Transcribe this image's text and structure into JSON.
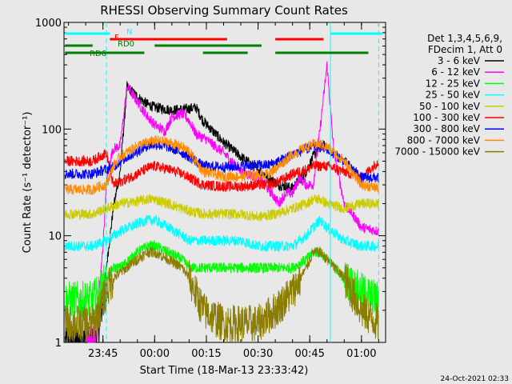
{
  "chart_data": {
    "type": "line",
    "title": "RHESSI Observing Summary Count Rates",
    "xlabel": "Start Time (18-Mar-13 23:33:42)",
    "ylabel": "Count Rate (s⁻¹ detector⁻¹)",
    "y_scale": "log",
    "ylim": [
      1,
      1000
    ],
    "y_ticks": [
      {
        "value": 1,
        "label": "1"
      },
      {
        "value": 10,
        "label": "10"
      },
      {
        "value": 100,
        "label": "100"
      },
      {
        "value": 1000,
        "label": "1000"
      }
    ],
    "x_ticks": [
      {
        "value": "23:45",
        "label": "23:45"
      },
      {
        "value": "00:00",
        "label": "00:00"
      },
      {
        "value": "00:15",
        "label": "00:15"
      },
      {
        "value": "00:30",
        "label": "00:30"
      },
      {
        "value": "00:45",
        "label": "00:45"
      },
      {
        "value": "01:00",
        "label": "01:00"
      }
    ],
    "x_range": [
      "23:33:42",
      "01:07:00"
    ],
    "legend_header": [
      "Det 1,3,4,5,6,9,",
      "FDecim 1, Att 0"
    ],
    "legend_placement": "right",
    "series": [
      {
        "name": "3 - 6 keV",
        "color": "#000000",
        "x": [
          "23:34",
          "23:43",
          "23:45",
          "23:46",
          "23:48",
          "23:50",
          "23:52",
          "23:55",
          "23:58",
          "00:00",
          "00:05",
          "00:10",
          "00:12",
          "00:14",
          "00:17",
          "00:20",
          "00:25",
          "00:30",
          "00:33",
          "00:36",
          "00:40",
          "00:44",
          "00:46",
          "00:48",
          "00:50"
        ],
        "values": [
          1,
          1,
          2.5,
          5,
          18,
          40,
          250,
          200,
          170,
          160,
          150,
          155,
          160,
          120,
          95,
          75,
          55,
          42,
          35,
          30,
          28,
          40,
          55,
          70,
          70
        ]
      },
      {
        "name": "6 - 12 keV",
        "color": "#ff00ff",
        "x": [
          "23:40",
          "23:43",
          "23:44",
          "23:45",
          "23:46",
          "23:47",
          "23:48",
          "23:50",
          "23:52",
          "23:55",
          "23:58",
          "00:00",
          "00:03",
          "00:05",
          "00:08",
          "00:10",
          "00:12",
          "00:15",
          "00:20",
          "00:25",
          "00:30",
          "00:34",
          "00:36",
          "00:38",
          "00:40",
          "00:42",
          "00:44",
          "00:46",
          "00:48",
          "00:50",
          "00:52",
          "00:55",
          "00:58",
          "01:00",
          "01:05"
        ],
        "values": [
          1,
          1,
          3,
          8,
          30,
          50,
          65,
          70,
          250,
          180,
          130,
          110,
          95,
          130,
          140,
          120,
          90,
          80,
          60,
          40,
          35,
          25,
          20,
          25,
          25,
          35,
          30,
          30,
          100,
          400,
          60,
          20,
          15,
          12,
          11
        ]
      },
      {
        "name": "12 - 25 keV",
        "color": "#00ff00",
        "x": [
          "23:34",
          "23:42",
          "23:44",
          "23:46",
          "23:48",
          "23:50",
          "23:55",
          "23:58",
          "00:00",
          "00:04",
          "00:08",
          "00:10",
          "00:14",
          "00:20",
          "00:25",
          "00:30",
          "00:35",
          "00:40",
          "00:44",
          "00:46",
          "00:48",
          "00:50",
          "00:55",
          "01:00",
          "01:05"
        ],
        "values": [
          2.5,
          2.5,
          3,
          4,
          5,
          5,
          7,
          8,
          8,
          7,
          6,
          5,
          5,
          5,
          5,
          5,
          5,
          5,
          6,
          7,
          7,
          6,
          4,
          3,
          2.5
        ]
      },
      {
        "name": "25 - 50 keV",
        "color": "#00ffff",
        "x": [
          "23:34",
          "23:42",
          "23:44",
          "23:46",
          "23:48",
          "23:50",
          "23:55",
          "23:58",
          "00:00",
          "00:04",
          "00:08",
          "00:10",
          "00:14",
          "00:20",
          "00:25",
          "00:30",
          "00:35",
          "00:40",
          "00:44",
          "00:46",
          "00:48",
          "00:50",
          "00:55",
          "01:00",
          "01:05"
        ],
        "values": [
          8,
          8,
          8.5,
          9,
          10,
          11,
          13,
          14,
          14,
          12,
          10,
          9,
          9,
          9,
          9,
          8,
          8,
          8,
          10,
          12,
          14,
          12,
          9,
          8,
          8
        ]
      },
      {
        "name": "50 - 100 keV",
        "color": "#cccc00",
        "x": [
          "23:34",
          "23:42",
          "23:44",
          "23:46",
          "23:48",
          "23:50",
          "23:55",
          "23:58",
          "00:00",
          "00:04",
          "00:08",
          "00:10",
          "00:14",
          "00:20",
          "00:25",
          "00:30",
          "00:35",
          "00:40",
          "00:44",
          "00:46",
          "00:48",
          "00:50",
          "00:55",
          "01:00",
          "01:05"
        ],
        "values": [
          16,
          16,
          17,
          18,
          19,
          20,
          21,
          22,
          22,
          20,
          18,
          17,
          16,
          16,
          16,
          15,
          16,
          18,
          20,
          22,
          22,
          20,
          18,
          20,
          20
        ]
      },
      {
        "name": "100 - 300 keV",
        "color": "#ff0000",
        "x": [
          "23:34",
          "23:42",
          "23:44",
          "23:46",
          "23:48",
          "23:50",
          "23:55",
          "23:58",
          "00:00",
          "00:04",
          "00:08",
          "00:10",
          "00:14",
          "00:20",
          "00:25",
          "00:30",
          "00:33",
          "00:36",
          "00:40",
          "00:44",
          "00:46",
          "00:48",
          "00:50",
          "00:55",
          "01:00",
          "01:05"
        ],
        "values": [
          50,
          50,
          55,
          60,
          30,
          32,
          38,
          43,
          45,
          42,
          38,
          35,
          30,
          29,
          29,
          30,
          30,
          32,
          38,
          42,
          45,
          45,
          45,
          40,
          35,
          50
        ]
      },
      {
        "name": "300 - 800 keV",
        "color": "#0000ff",
        "x": [
          "23:34",
          "23:42",
          "23:44",
          "23:46",
          "23:48",
          "23:50",
          "23:55",
          "23:58",
          "00:00",
          "00:04",
          "00:08",
          "00:10",
          "00:14",
          "00:20",
          "00:25",
          "00:30",
          "00:33",
          "00:36",
          "00:40",
          "00:44",
          "00:46",
          "00:48",
          "00:50",
          "00:55",
          "01:00",
          "01:05"
        ],
        "values": [
          38,
          38,
          40,
          42,
          44,
          50,
          62,
          70,
          72,
          68,
          60,
          55,
          45,
          44,
          45,
          46,
          46,
          50,
          58,
          65,
          68,
          68,
          65,
          50,
          35,
          35
        ]
      },
      {
        "name": "800 - 7000 keV",
        "color": "#ff8c00",
        "x": [
          "23:34",
          "23:42",
          "23:44",
          "23:46",
          "23:48",
          "23:50",
          "23:55",
          "23:58",
          "00:00",
          "00:04",
          "00:08",
          "00:10",
          "00:14",
          "00:20",
          "00:25",
          "00:30",
          "00:33",
          "00:36",
          "00:40",
          "00:44",
          "00:46",
          "00:48",
          "00:50",
          "00:55",
          "01:00",
          "01:05"
        ],
        "values": [
          27,
          27,
          29,
          30,
          45,
          55,
          70,
          75,
          78,
          75,
          68,
          62,
          40,
          36,
          36,
          37,
          38,
          45,
          58,
          68,
          72,
          72,
          68,
          50,
          30,
          28
        ]
      },
      {
        "name": "7000 - 15000 keV",
        "color": "#8b7d00",
        "x": [
          "23:34",
          "23:42",
          "23:44",
          "23:46",
          "23:48",
          "23:50",
          "23:55",
          "23:58",
          "00:00",
          "00:04",
          "00:08",
          "00:10",
          "00:14",
          "00:20",
          "00:25",
          "00:30",
          "00:35",
          "00:40",
          "00:44",
          "00:46",
          "00:48",
          "00:50",
          "00:55",
          "01:00",
          "01:05"
        ],
        "values": [
          1.5,
          1.5,
          2,
          3,
          4,
          4.5,
          6,
          7,
          7,
          6,
          5,
          4,
          2,
          1.5,
          1.5,
          1.5,
          2,
          3,
          5,
          7,
          7,
          6,
          4,
          2,
          1.5
        ]
      }
    ],
    "flags": [
      {
        "label": "N",
        "color": "#00ffff",
        "segments": [
          [
            "23:34",
            "23:47"
          ],
          [
            "00:51",
            "01:06"
          ]
        ]
      },
      {
        "label": "F",
        "color": "#ff0000",
        "segments": [
          [
            "23:47",
            "00:21"
          ],
          [
            "00:35",
            "00:49"
          ]
        ]
      },
      {
        "label": "RD0",
        "color": "#008000",
        "segments": [
          [
            "23:34",
            "23:42"
          ],
          [
            "00:00",
            "00:31"
          ]
        ]
      },
      {
        "label": "RD6",
        "color": "#008000",
        "segments": [
          [
            "23:34",
            "23:57"
          ],
          [
            "00:14",
            "00:27"
          ],
          [
            "00:35",
            "01:02"
          ]
        ]
      }
    ],
    "vertical_markers": [
      {
        "x": "23:46",
        "color": "#00ffff",
        "style": "dashed"
      },
      {
        "x": "00:51",
        "color": "#00ffff",
        "style": "solid"
      },
      {
        "x": "01:05",
        "color": "#00ffff",
        "style": "dashed"
      }
    ],
    "footer_date": "24-Oct-2021 02:33"
  }
}
